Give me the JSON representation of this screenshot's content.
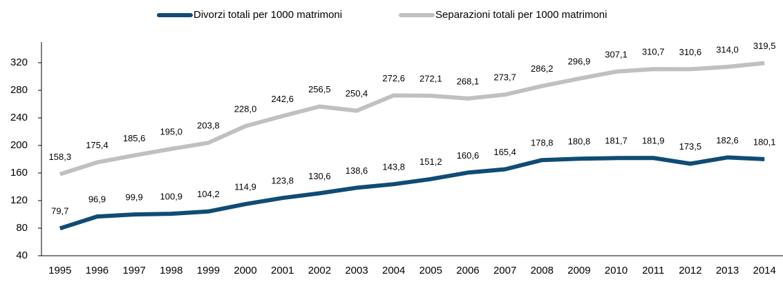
{
  "chart_data": {
    "type": "line",
    "categories": [
      "1995",
      "1996",
      "1997",
      "1998",
      "1999",
      "2000",
      "2001",
      "2002",
      "2003",
      "2004",
      "2005",
      "2006",
      "2007",
      "2008",
      "2009",
      "2010",
      "2011",
      "2012",
      "2013",
      "2014"
    ],
    "series": [
      {
        "name": "Divorzi totali per 1000 matrimoni",
        "color": "#0f4c75",
        "values": [
          79.7,
          96.9,
          99.9,
          100.9,
          104.2,
          114.9,
          123.8,
          130.6,
          138.6,
          143.8,
          151.2,
          160.6,
          165.4,
          178.8,
          180.8,
          181.7,
          181.9,
          173.5,
          182.6,
          180.1
        ],
        "value_labels": [
          "79,7",
          "96,9",
          "99,9",
          "100,9",
          "104,2",
          "114,9",
          "123,8",
          "130,6",
          "138,6",
          "143,8",
          "151,2",
          "160,6",
          "165,4",
          "178,8",
          "180,8",
          "181,7",
          "181,9",
          "173,5",
          "182,6",
          "180,1"
        ]
      },
      {
        "name": "Separazioni totali per 1000 matrimoni",
        "color": "#c0c0c0",
        "values": [
          158.3,
          175.4,
          185.6,
          195.0,
          203.8,
          228.0,
          242.6,
          256.5,
          250.4,
          272.6,
          272.1,
          268.1,
          273.7,
          286.2,
          296.9,
          307.1,
          310.7,
          310.6,
          314.0,
          319.5
        ],
        "value_labels": [
          "158,3",
          "175,4",
          "185,6",
          "195,0",
          "203,8",
          "228,0",
          "242,6",
          "256,5",
          "250,4",
          "272,6",
          "272,1",
          "268,1",
          "273,7",
          "286,2",
          "296,9",
          "307,1",
          "310,7",
          "310,6",
          "314,0",
          "319,5"
        ]
      }
    ],
    "ylim": [
      40,
      350
    ],
    "yticks": [
      40,
      80,
      120,
      160,
      200,
      240,
      280,
      320
    ],
    "grid": false,
    "legend": "top"
  }
}
